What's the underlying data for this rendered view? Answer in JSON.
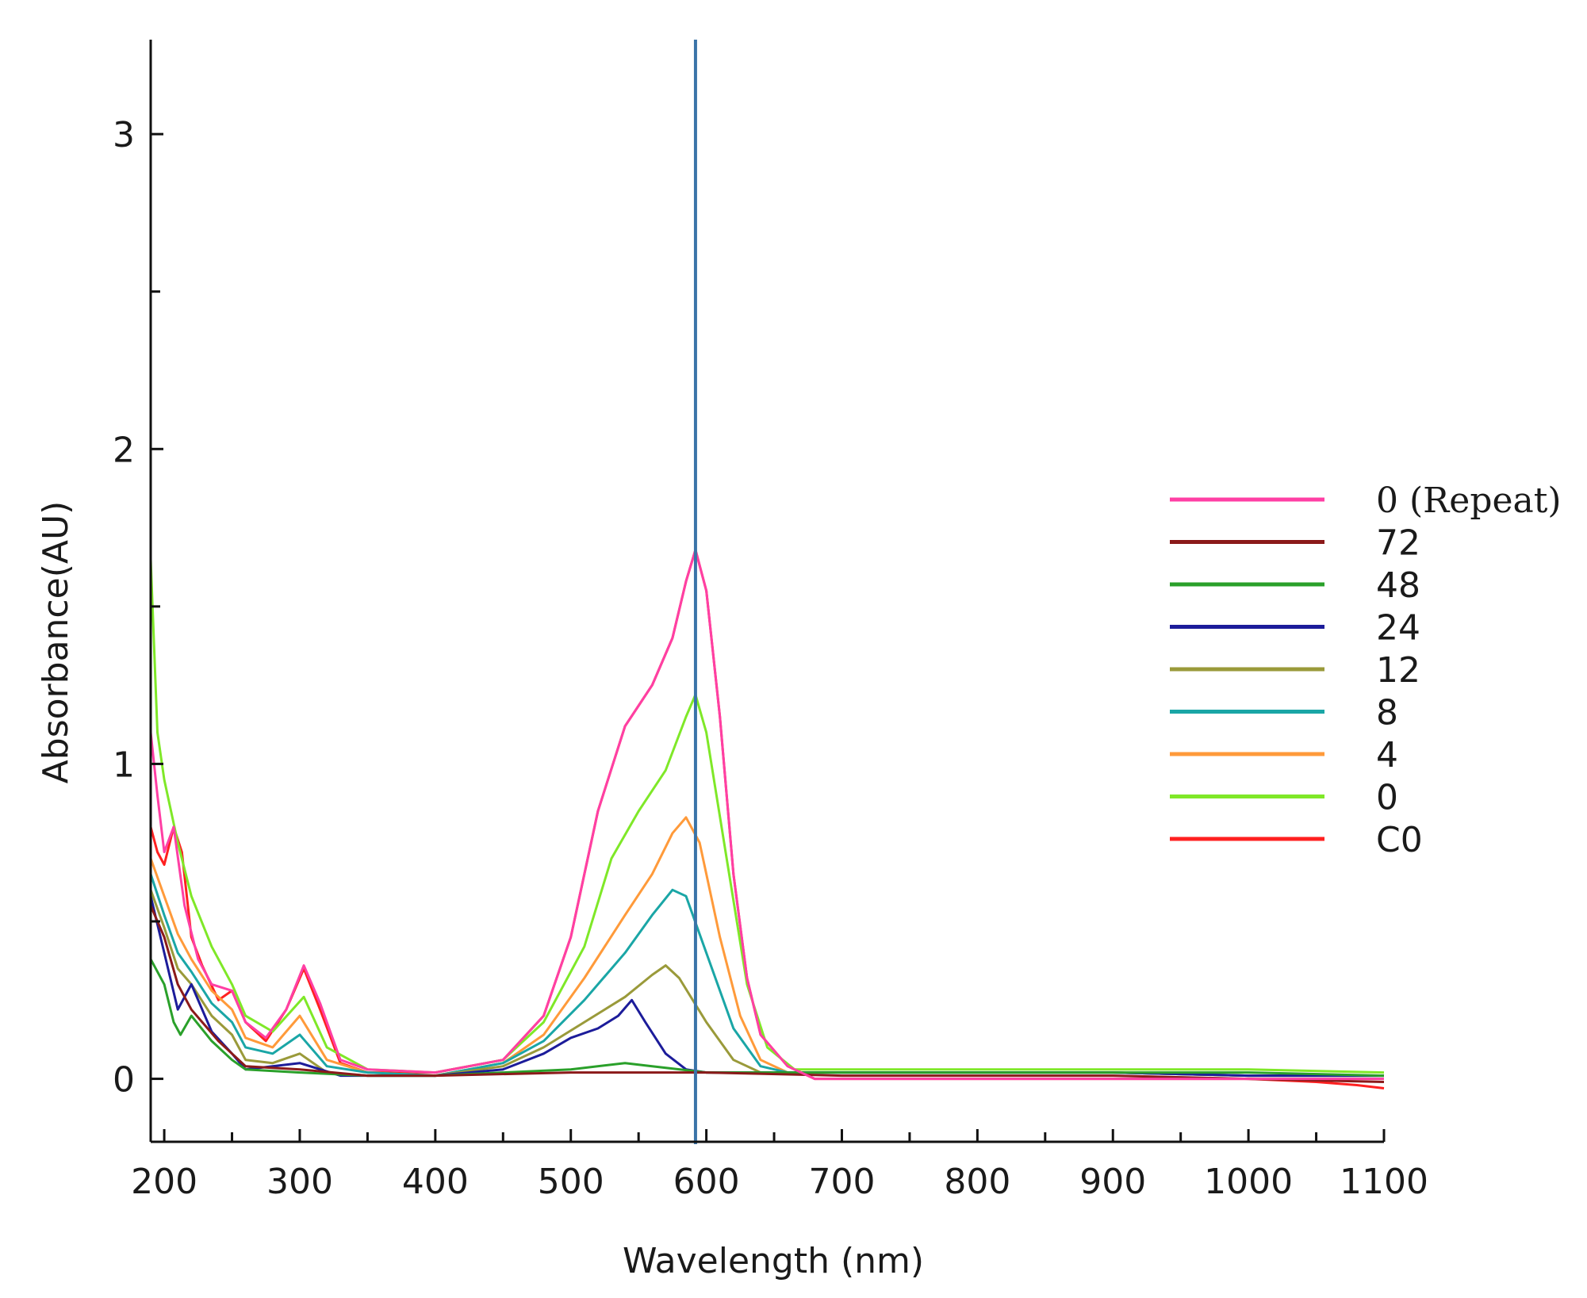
{
  "chart_data": {
    "type": "line",
    "title": "",
    "xlabel": "Wavelength (nm)",
    "ylabel": "Absorbance(AU)",
    "xlim": [
      190,
      1100
    ],
    "ylim": [
      -0.2,
      3.3
    ],
    "x_ticks": [
      200,
      300,
      400,
      500,
      600,
      700,
      800,
      900,
      1000,
      1100
    ],
    "x_tick_labels": [
      "200",
      "300",
      "400",
      "500",
      "600",
      "700",
      "800",
      "900",
      "1000",
      "1100"
    ],
    "y_ticks": [
      0,
      1,
      2,
      3
    ],
    "y_tick_labels": [
      "0",
      "1",
      "2",
      "3"
    ],
    "grid": false,
    "legend_position": "right",
    "marker_line": {
      "x": 592,
      "color": "#3a74a8"
    },
    "series": [
      {
        "name": "0 (Repeat)",
        "color": "#ff3fa4",
        "points": [
          [
            190,
            1.1
          ],
          [
            195,
            0.9
          ],
          [
            200,
            0.72
          ],
          [
            207,
            0.8
          ],
          [
            215,
            0.55
          ],
          [
            225,
            0.38
          ],
          [
            235,
            0.3
          ],
          [
            250,
            0.28
          ],
          [
            260,
            0.18
          ],
          [
            275,
            0.13
          ],
          [
            290,
            0.22
          ],
          [
            303,
            0.36
          ],
          [
            315,
            0.24
          ],
          [
            330,
            0.06
          ],
          [
            350,
            0.03
          ],
          [
            400,
            0.02
          ],
          [
            450,
            0.06
          ],
          [
            480,
            0.2
          ],
          [
            500,
            0.45
          ],
          [
            520,
            0.85
          ],
          [
            540,
            1.12
          ],
          [
            560,
            1.25
          ],
          [
            575,
            1.4
          ],
          [
            585,
            1.58
          ],
          [
            592,
            1.68
          ],
          [
            600,
            1.55
          ],
          [
            610,
            1.15
          ],
          [
            620,
            0.65
          ],
          [
            630,
            0.32
          ],
          [
            640,
            0.14
          ],
          [
            660,
            0.04
          ],
          [
            680,
            0.0
          ],
          [
            750,
            0.0
          ],
          [
            900,
            0.0
          ],
          [
            1000,
            0.0
          ],
          [
            1100,
            0.0
          ]
        ]
      },
      {
        "name": "72",
        "color": "#8b1a1a",
        "points": [
          [
            190,
            0.55
          ],
          [
            200,
            0.45
          ],
          [
            210,
            0.3
          ],
          [
            220,
            0.22
          ],
          [
            240,
            0.12
          ],
          [
            260,
            0.04
          ],
          [
            300,
            0.03
          ],
          [
            350,
            0.01
          ],
          [
            400,
            0.01
          ],
          [
            500,
            0.02
          ],
          [
            600,
            0.02
          ],
          [
            700,
            0.01
          ],
          [
            800,
            0.01
          ],
          [
            900,
            0.01
          ],
          [
            1000,
            0.0
          ],
          [
            1100,
            -0.01
          ]
        ]
      },
      {
        "name": "48",
        "color": "#2aa02a",
        "points": [
          [
            190,
            0.38
          ],
          [
            200,
            0.3
          ],
          [
            207,
            0.18
          ],
          [
            212,
            0.14
          ],
          [
            220,
            0.2
          ],
          [
            235,
            0.12
          ],
          [
            250,
            0.06
          ],
          [
            260,
            0.03
          ],
          [
            300,
            0.02
          ],
          [
            350,
            0.01
          ],
          [
            400,
            0.01
          ],
          [
            450,
            0.02
          ],
          [
            500,
            0.03
          ],
          [
            540,
            0.05
          ],
          [
            560,
            0.04
          ],
          [
            600,
            0.02
          ],
          [
            700,
            0.02
          ],
          [
            800,
            0.02
          ],
          [
            900,
            0.02
          ],
          [
            1000,
            0.02
          ],
          [
            1100,
            0.01
          ]
        ]
      },
      {
        "name": "24",
        "color": "#1c1c9a",
        "points": [
          [
            190,
            0.58
          ],
          [
            200,
            0.4
          ],
          [
            210,
            0.22
          ],
          [
            220,
            0.3
          ],
          [
            235,
            0.15
          ],
          [
            250,
            0.08
          ],
          [
            260,
            0.03
          ],
          [
            300,
            0.05
          ],
          [
            330,
            0.01
          ],
          [
            400,
            0.01
          ],
          [
            450,
            0.03
          ],
          [
            480,
            0.08
          ],
          [
            500,
            0.13
          ],
          [
            520,
            0.16
          ],
          [
            535,
            0.2
          ],
          [
            545,
            0.25
          ],
          [
            555,
            0.18
          ],
          [
            570,
            0.08
          ],
          [
            585,
            0.03
          ],
          [
            600,
            0.02
          ],
          [
            700,
            0.02
          ],
          [
            800,
            0.02
          ],
          [
            900,
            0.02
          ],
          [
            1000,
            0.01
          ],
          [
            1100,
            0.01
          ]
        ]
      },
      {
        "name": "12",
        "color": "#9a9a3a",
        "points": [
          [
            190,
            0.6
          ],
          [
            200,
            0.48
          ],
          [
            210,
            0.35
          ],
          [
            220,
            0.3
          ],
          [
            235,
            0.2
          ],
          [
            250,
            0.14
          ],
          [
            260,
            0.06
          ],
          [
            280,
            0.05
          ],
          [
            300,
            0.08
          ],
          [
            320,
            0.02
          ],
          [
            350,
            0.01
          ],
          [
            400,
            0.01
          ],
          [
            450,
            0.04
          ],
          [
            480,
            0.1
          ],
          [
            510,
            0.18
          ],
          [
            540,
            0.26
          ],
          [
            560,
            0.33
          ],
          [
            570,
            0.36
          ],
          [
            580,
            0.32
          ],
          [
            600,
            0.18
          ],
          [
            620,
            0.06
          ],
          [
            640,
            0.02
          ],
          [
            700,
            0.02
          ],
          [
            800,
            0.02
          ],
          [
            900,
            0.02
          ],
          [
            1000,
            0.01
          ],
          [
            1100,
            0.01
          ]
        ]
      },
      {
        "name": "8",
        "color": "#1aa6a6",
        "points": [
          [
            190,
            0.65
          ],
          [
            200,
            0.52
          ],
          [
            210,
            0.4
          ],
          [
            220,
            0.34
          ],
          [
            235,
            0.24
          ],
          [
            250,
            0.18
          ],
          [
            260,
            0.1
          ],
          [
            280,
            0.08
          ],
          [
            300,
            0.14
          ],
          [
            320,
            0.04
          ],
          [
            350,
            0.02
          ],
          [
            400,
            0.01
          ],
          [
            450,
            0.05
          ],
          [
            480,
            0.12
          ],
          [
            510,
            0.25
          ],
          [
            540,
            0.4
          ],
          [
            560,
            0.52
          ],
          [
            575,
            0.6
          ],
          [
            585,
            0.58
          ],
          [
            600,
            0.4
          ],
          [
            620,
            0.16
          ],
          [
            640,
            0.04
          ],
          [
            660,
            0.02
          ],
          [
            700,
            0.02
          ],
          [
            800,
            0.02
          ],
          [
            900,
            0.02
          ],
          [
            1000,
            0.01
          ],
          [
            1100,
            0.01
          ]
        ]
      },
      {
        "name": "4",
        "color": "#ff9a3a",
        "points": [
          [
            190,
            0.7
          ],
          [
            200,
            0.58
          ],
          [
            210,
            0.46
          ],
          [
            220,
            0.38
          ],
          [
            235,
            0.28
          ],
          [
            250,
            0.22
          ],
          [
            260,
            0.13
          ],
          [
            280,
            0.1
          ],
          [
            300,
            0.2
          ],
          [
            320,
            0.06
          ],
          [
            350,
            0.02
          ],
          [
            400,
            0.01
          ],
          [
            450,
            0.05
          ],
          [
            480,
            0.14
          ],
          [
            510,
            0.32
          ],
          [
            540,
            0.52
          ],
          [
            560,
            0.65
          ],
          [
            575,
            0.78
          ],
          [
            585,
            0.83
          ],
          [
            595,
            0.75
          ],
          [
            610,
            0.45
          ],
          [
            625,
            0.2
          ],
          [
            640,
            0.06
          ],
          [
            660,
            0.02
          ],
          [
            700,
            0.02
          ],
          [
            800,
            0.02
          ],
          [
            900,
            0.02
          ],
          [
            1000,
            0.01
          ],
          [
            1100,
            0.01
          ]
        ]
      },
      {
        "name": "0",
        "color": "#7fe828",
        "points": [
          [
            190,
            1.65
          ],
          [
            195,
            1.1
          ],
          [
            200,
            0.95
          ],
          [
            210,
            0.75
          ],
          [
            220,
            0.58
          ],
          [
            235,
            0.42
          ],
          [
            250,
            0.3
          ],
          [
            260,
            0.2
          ],
          [
            280,
            0.15
          ],
          [
            303,
            0.26
          ],
          [
            320,
            0.1
          ],
          [
            350,
            0.03
          ],
          [
            400,
            0.02
          ],
          [
            450,
            0.06
          ],
          [
            480,
            0.18
          ],
          [
            510,
            0.42
          ],
          [
            530,
            0.7
          ],
          [
            550,
            0.85
          ],
          [
            570,
            0.98
          ],
          [
            585,
            1.15
          ],
          [
            592,
            1.22
          ],
          [
            600,
            1.1
          ],
          [
            615,
            0.7
          ],
          [
            630,
            0.3
          ],
          [
            645,
            0.1
          ],
          [
            665,
            0.03
          ],
          [
            700,
            0.03
          ],
          [
            800,
            0.03
          ],
          [
            900,
            0.03
          ],
          [
            1000,
            0.03
          ],
          [
            1100,
            0.02
          ]
        ]
      },
      {
        "name": "C0",
        "color": "#ff2020",
        "points": [
          [
            190,
            0.8
          ],
          [
            195,
            0.72
          ],
          [
            200,
            0.68
          ],
          [
            207,
            0.8
          ],
          [
            213,
            0.72
          ],
          [
            220,
            0.45
          ],
          [
            228,
            0.36
          ],
          [
            240,
            0.25
          ],
          [
            250,
            0.28
          ],
          [
            260,
            0.18
          ],
          [
            275,
            0.12
          ],
          [
            290,
            0.22
          ],
          [
            303,
            0.35
          ],
          [
            315,
            0.22
          ],
          [
            330,
            0.05
          ],
          [
            350,
            0.02
          ],
          [
            400,
            0.02
          ],
          [
            450,
            0.06
          ],
          [
            480,
            0.2
          ],
          [
            500,
            0.45
          ],
          [
            520,
            0.85
          ],
          [
            540,
            1.12
          ],
          [
            560,
            1.25
          ],
          [
            575,
            1.4
          ],
          [
            585,
            1.58
          ],
          [
            592,
            1.68
          ],
          [
            600,
            1.55
          ],
          [
            610,
            1.15
          ],
          [
            620,
            0.65
          ],
          [
            630,
            0.32
          ],
          [
            640,
            0.14
          ],
          [
            660,
            0.04
          ],
          [
            680,
            0.0
          ],
          [
            750,
            0.0
          ],
          [
            900,
            0.0
          ],
          [
            1000,
            0.0
          ],
          [
            1050,
            -0.01
          ],
          [
            1080,
            -0.02
          ],
          [
            1100,
            -0.03
          ]
        ]
      }
    ]
  }
}
